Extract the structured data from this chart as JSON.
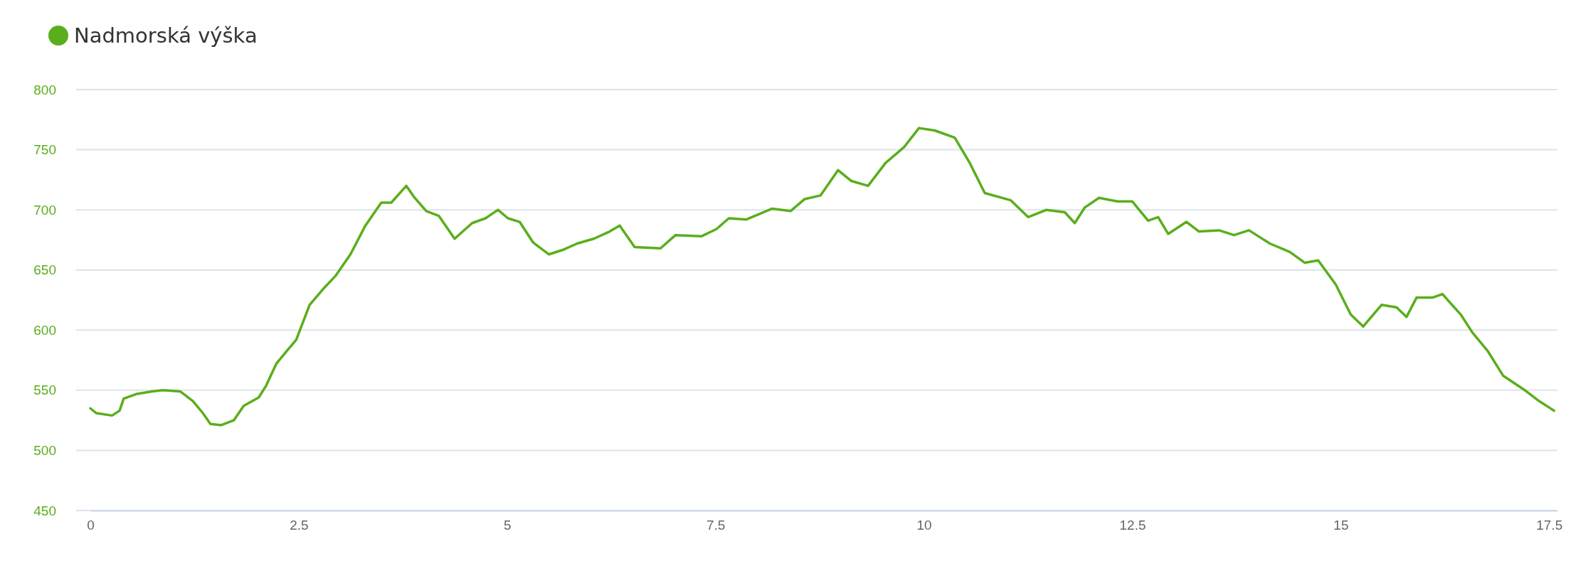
{
  "chart_data": {
    "type": "line",
    "xlim": [
      0,
      17.6
    ],
    "xticks": [
      0,
      2.5,
      5,
      7.5,
      10,
      12.5,
      15,
      17.5
    ],
    "ylim": [
      450,
      800
    ],
    "yticks": [
      450,
      500,
      550,
      600,
      650,
      700,
      750,
      800
    ],
    "grid": "y",
    "legend": "top left",
    "marker": "none",
    "line_style": "solid",
    "series": [
      {
        "name": "Nadmorská výška",
        "color": "#5aae1b",
        "x": [
          0,
          0.07,
          0.26,
          0.35,
          0.4,
          0.56,
          0.74,
          0.87,
          1.08,
          1.23,
          1.35,
          1.44,
          1.57,
          1.72,
          1.84,
          2.02,
          2.11,
          2.23,
          2.36,
          2.47,
          2.63,
          2.79,
          2.94,
          3.12,
          3.3,
          3.49,
          3.61,
          3.79,
          3.88,
          4.03,
          4.18,
          4.37,
          4.58,
          4.74,
          4.89,
          5.01,
          5.15,
          5.31,
          5.5,
          5.68,
          5.84,
          6.04,
          6.23,
          6.35,
          6.53,
          6.84,
          7.02,
          7.33,
          7.51,
          7.66,
          7.87,
          8.18,
          8.4,
          8.57,
          8.76,
          8.97,
          9.13,
          9.33,
          9.54,
          9.76,
          9.94,
          10.13,
          10.37,
          10.55,
          10.73,
          11.04,
          11.25,
          11.47,
          11.69,
          11.81,
          11.93,
          12.1,
          12.32,
          12.5,
          12.69,
          12.81,
          12.93,
          13.15,
          13.3,
          13.54,
          13.72,
          13.9,
          14.15,
          14.39,
          14.57,
          14.73,
          14.94,
          15.12,
          15.27,
          15.49,
          15.67,
          15.79,
          15.91,
          16.1,
          16.22,
          16.44,
          16.58,
          16.76,
          16.95,
          17.19,
          17.38,
          17.56
        ],
        "values": [
          535,
          531,
          529,
          533,
          543,
          547,
          549,
          550,
          549,
          541,
          531,
          522,
          521,
          525,
          537,
          544,
          554,
          572,
          583,
          592,
          621,
          634,
          645,
          663,
          687,
          706,
          706,
          720,
          711,
          699,
          695,
          676,
          689,
          693,
          700,
          693,
          690,
          673,
          663,
          667,
          672,
          676,
          682,
          687,
          669,
          668,
          679,
          678,
          684,
          693,
          692,
          701,
          699,
          709,
          712,
          733,
          724,
          720,
          739,
          752,
          768,
          766,
          760,
          739,
          714,
          708,
          694,
          700,
          698,
          689,
          702,
          710,
          707,
          707,
          691,
          694,
          680,
          690,
          682,
          683,
          679,
          683,
          672,
          665,
          656,
          658,
          638,
          613,
          603,
          621,
          619,
          611,
          627,
          627,
          630,
          613,
          598,
          583,
          562,
          551,
          541,
          533
        ]
      }
    ]
  }
}
